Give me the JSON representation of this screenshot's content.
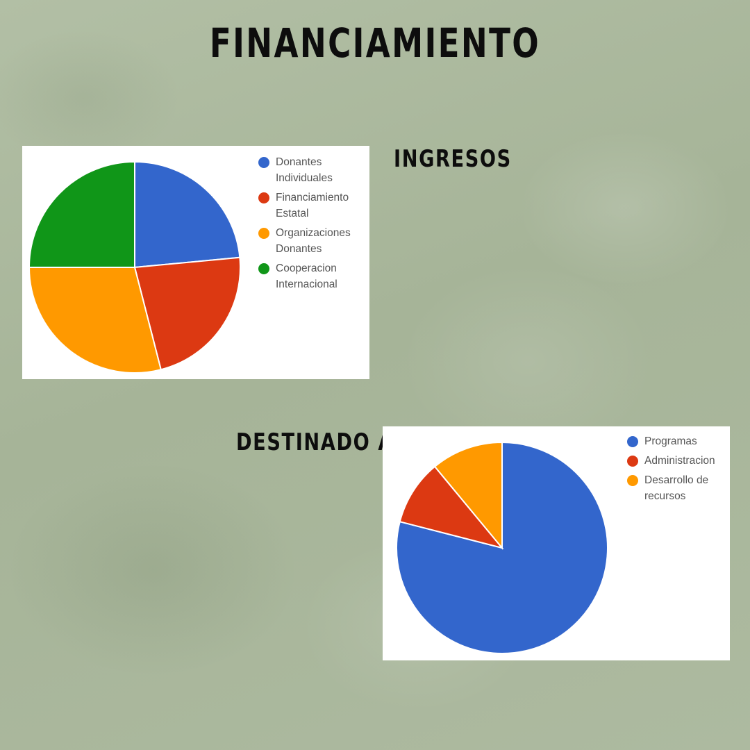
{
  "title": "FINANCIAMIENTO",
  "headings": {
    "ingresos": "INGRESOS",
    "destinado": "DESTINADO A"
  },
  "chart_data": [
    {
      "type": "pie",
      "categories": [
        "Donantes Individuales",
        "Financiamiento Estatal",
        "Organizaciones Donantes",
        "Cooperacion Internacional"
      ],
      "values": [
        23.5,
        22.5,
        29,
        25
      ],
      "colors": [
        "#3366cc",
        "#dc3912",
        "#ff9900",
        "#109618"
      ],
      "legend": "right",
      "start_angle": "12 o'clock, clockwise"
    },
    {
      "type": "pie",
      "categories": [
        "Programas",
        "Administracion",
        "Desarrollo de recursos"
      ],
      "values": [
        79,
        10,
        11
      ],
      "colors": [
        "#3366cc",
        "#dc3912",
        "#ff9900"
      ],
      "legend": "right",
      "start_angle": "12 o'clock, clockwise"
    }
  ]
}
